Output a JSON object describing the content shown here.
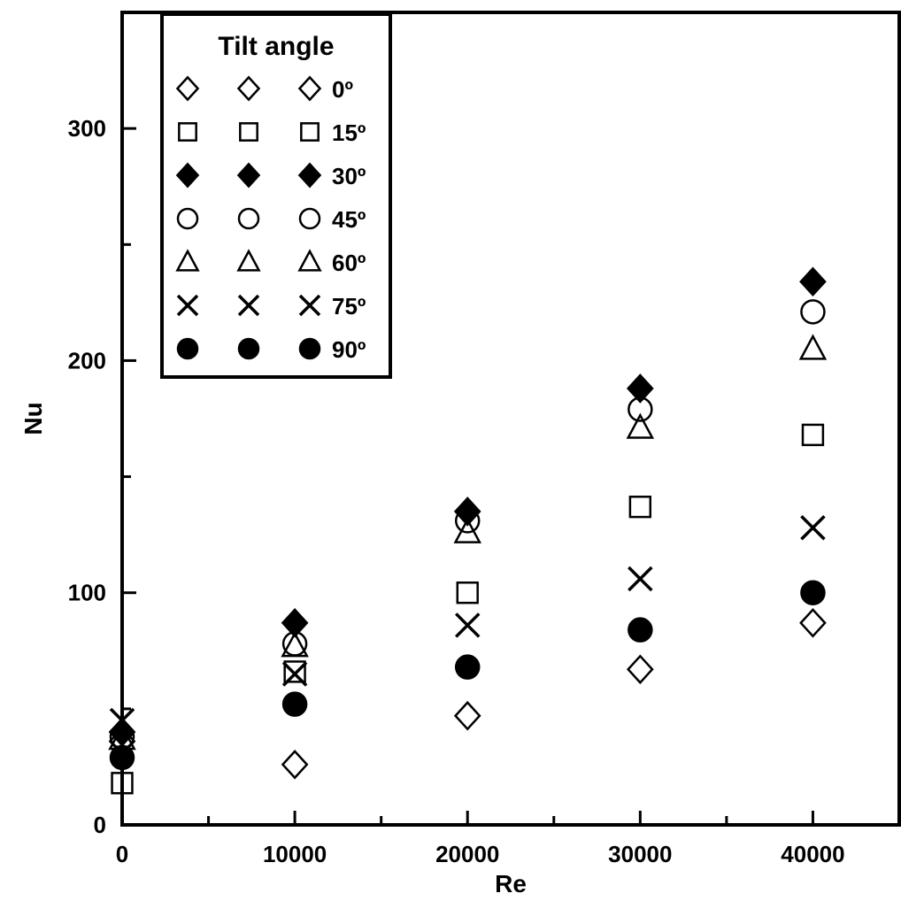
{
  "chart_data": {
    "type": "scatter",
    "xlabel": "Re",
    "ylabel": "Nu",
    "xlim": [
      0,
      45000
    ],
    "ylim": [
      0,
      350
    ],
    "x_ticks": [
      0,
      10000,
      20000,
      30000,
      40000
    ],
    "x_minor_ticks": [
      5000,
      15000,
      25000,
      35000
    ],
    "y_ticks": [
      0,
      100,
      200,
      300
    ],
    "y_minor_ticks": [
      50,
      150,
      250
    ],
    "grid": false,
    "legend": {
      "title": "Tilt angle",
      "placement": "top-left",
      "entries": [
        "0º",
        "15º",
        "30º",
        "45º",
        "60º",
        "75º",
        "90º"
      ]
    },
    "series": [
      {
        "name": "0º",
        "marker": "diamond-open",
        "x": [
          0,
          10000,
          20000,
          30000,
          40000
        ],
        "y": [
          36,
          26,
          47,
          67,
          87
        ]
      },
      {
        "name": "15º",
        "marker": "square-open",
        "x": [
          0,
          10000,
          20000,
          30000,
          40000
        ],
        "y": [
          18,
          66,
          100,
          137,
          168
        ]
      },
      {
        "name": "30º",
        "marker": "diamond-filled",
        "x": [
          0,
          10000,
          20000,
          30000,
          40000
        ],
        "y": [
          40,
          87,
          135,
          188,
          234
        ]
      },
      {
        "name": "45º",
        "marker": "circle-open",
        "x": [
          0,
          10000,
          20000,
          30000,
          40000
        ],
        "y": [
          38,
          78,
          131,
          179,
          221
        ]
      },
      {
        "name": "60º",
        "marker": "triangle-open",
        "x": [
          0,
          10000,
          20000,
          30000,
          40000
        ],
        "y": [
          37,
          77,
          126,
          171,
          205
        ]
      },
      {
        "name": "75º",
        "marker": "x",
        "x": [
          0,
          10000,
          20000,
          30000,
          40000
        ],
        "y": [
          45,
          65,
          86,
          106,
          128
        ]
      },
      {
        "name": "90º",
        "marker": "circle-filled",
        "x": [
          0,
          10000,
          20000,
          30000,
          40000
        ],
        "y": [
          29,
          52,
          68,
          84,
          100
        ]
      }
    ]
  }
}
